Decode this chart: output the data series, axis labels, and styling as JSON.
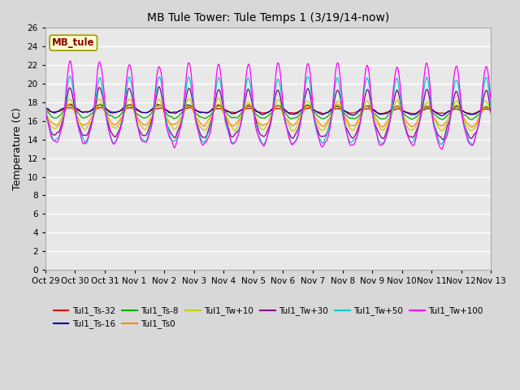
{
  "title": "MB Tule Tower: Tule Temps 1 (3/19/14-now)",
  "ylabel": "Temperature (C)",
  "ylim": [
    0,
    26
  ],
  "yticks": [
    0,
    2,
    4,
    6,
    8,
    10,
    12,
    14,
    16,
    18,
    20,
    22,
    24,
    26
  ],
  "xtick_labels": [
    "Oct 29",
    "Oct 30",
    "Oct 31",
    "Nov 1",
    "Nov 2",
    "Nov 3",
    "Nov 4",
    "Nov 5",
    "Nov 6",
    "Nov 7",
    "Nov 8",
    "Nov 9",
    "Nov 10",
    "Nov 11",
    "Nov 12",
    "Nov 13"
  ],
  "fig_bg_color": "#d8d8d8",
  "plot_bg_color": "#e8e8e8",
  "grid_color": "#ffffff",
  "series": [
    {
      "label": "Tul1_Ts-32",
      "color": "#dd0000"
    },
    {
      "label": "Tul1_Ts-16",
      "color": "#000099"
    },
    {
      "label": "Tul1_Ts-8",
      "color": "#00aa00"
    },
    {
      "label": "Tul1_Ts0",
      "color": "#ff8800"
    },
    {
      "label": "Tul1_Tw+10",
      "color": "#cccc00"
    },
    {
      "label": "Tul1_Tw+30",
      "color": "#880088"
    },
    {
      "label": "Tul1_Tw+50",
      "color": "#00cccc"
    },
    {
      "label": "Tul1_Tw+100",
      "color": "#ff00ff"
    }
  ],
  "legend_box_facecolor": "#ffffcc",
  "legend_box_edgecolor": "#999900",
  "legend_text_color": "#880000",
  "legend_label": "MB_tule",
  "n_days": 15,
  "ppd": 144,
  "seed": 7
}
